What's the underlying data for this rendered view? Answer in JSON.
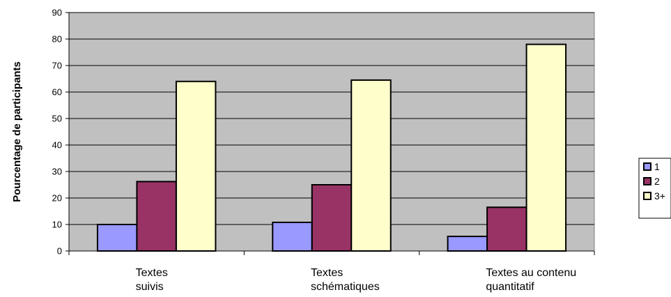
{
  "chart_data": {
    "type": "bar",
    "ylabel": "Pourcentage de participants",
    "ylim": [
      0,
      90
    ],
    "ytick_step": 10,
    "grid": true,
    "legend_position": "right",
    "categories": [
      [
        "Textes",
        "suivis"
      ],
      [
        "Textes",
        "schématiques"
      ],
      [
        "Textes au contenu",
        "quantitatif"
      ]
    ],
    "series": [
      {
        "name": "1",
        "color": "#9999ff",
        "values": [
          10,
          10.8,
          5.5
        ]
      },
      {
        "name": "2",
        "color": "#993366",
        "values": [
          26.2,
          25,
          16.5
        ]
      },
      {
        "name": "3+",
        "color": "#ffffcc",
        "values": [
          64,
          64.5,
          78
        ]
      }
    ],
    "colors": {
      "plot_background": "#c0c0c0",
      "bar_outline": "#000000"
    }
  }
}
